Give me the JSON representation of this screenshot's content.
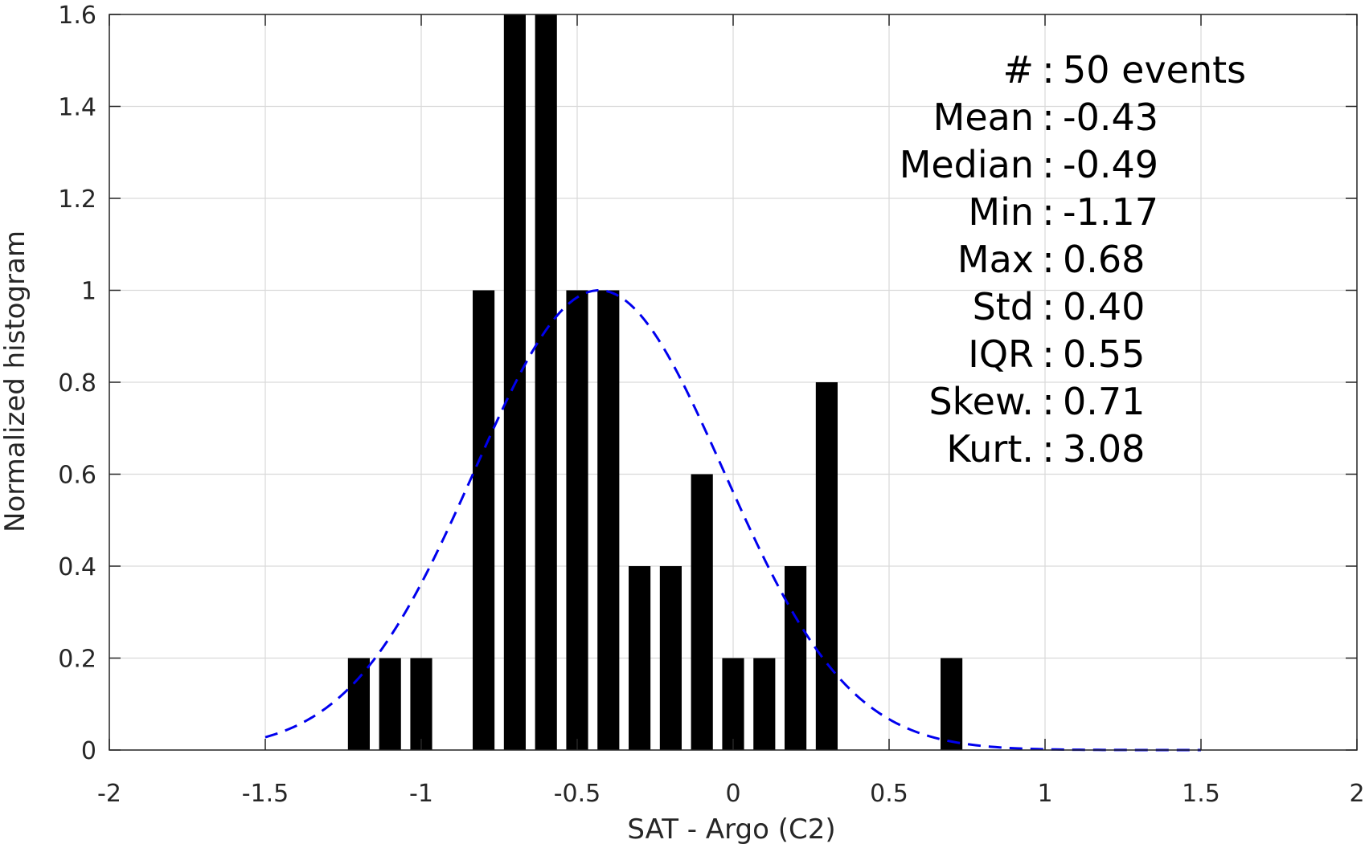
{
  "chart_data": {
    "type": "bar",
    "title": "",
    "xlabel": "SAT - Argo (C2)",
    "ylabel": "Normalized histogram",
    "xlim": [
      -2,
      2
    ],
    "ylim": [
      0,
      1.6
    ],
    "xticks": [
      -2,
      -1.5,
      -1,
      -0.5,
      0,
      0.5,
      1,
      1.5,
      2
    ],
    "xtick_labels": [
      "-2",
      "-1.5",
      "-1",
      "-0.5",
      "0",
      "0.5",
      "1",
      "1.5",
      "2"
    ],
    "yticks": [
      0,
      0.2,
      0.4,
      0.6,
      0.8,
      1,
      1.2,
      1.4,
      1.6
    ],
    "ytick_labels": [
      "0",
      "0.2",
      "0.4",
      "0.6",
      "0.8",
      "1",
      "1.2",
      "1.4",
      "1.6"
    ],
    "grid": true,
    "bin_width": 0.1,
    "bar_width": 0.07,
    "bars": [
      {
        "x": -1.2,
        "value": 0.2
      },
      {
        "x": -1.1,
        "value": 0.2
      },
      {
        "x": -1.0,
        "value": 0.2
      },
      {
        "x": -0.8,
        "value": 1.0
      },
      {
        "x": -0.7,
        "value": 1.6
      },
      {
        "x": -0.6,
        "value": 1.6
      },
      {
        "x": -0.5,
        "value": 1.0
      },
      {
        "x": -0.4,
        "value": 1.0
      },
      {
        "x": -0.3,
        "value": 0.4
      },
      {
        "x": -0.2,
        "value": 0.4
      },
      {
        "x": -0.1,
        "value": 0.6
      },
      {
        "x": 0.0,
        "value": 0.2
      },
      {
        "x": 0.1,
        "value": 0.2
      },
      {
        "x": 0.2,
        "value": 0.4
      },
      {
        "x": 0.3,
        "value": 0.8
      },
      {
        "x": 0.7,
        "value": 0.2
      }
    ],
    "bar_color": "#000000",
    "fit_curve": {
      "style": "dashed",
      "color": "#0000ee",
      "x_range": [
        -1.5,
        1.5
      ],
      "peak": 1.0,
      "mean": -0.43,
      "std": 0.4
    },
    "stats": [
      {
        "label": "#  ",
        "sep": ":",
        "value": "50 events"
      },
      {
        "label": "Mean",
        "sep": ":",
        "value": "-0.43"
      },
      {
        "label": "Median",
        "sep": ":",
        "value": "-0.49"
      },
      {
        "label": "Min",
        "sep": ":",
        "value": "-1.17"
      },
      {
        "label": "Max",
        "sep": ":",
        "value": "0.68"
      },
      {
        "label": "Std",
        "sep": ":",
        "value": "0.40"
      },
      {
        "label": "IQR",
        "sep": ":",
        "value": "0.55"
      },
      {
        "label": "Skew.",
        "sep": ":",
        "value": "0.71"
      },
      {
        "label": "Kurt.",
        "sep": ":",
        "value": "3.08"
      }
    ]
  }
}
